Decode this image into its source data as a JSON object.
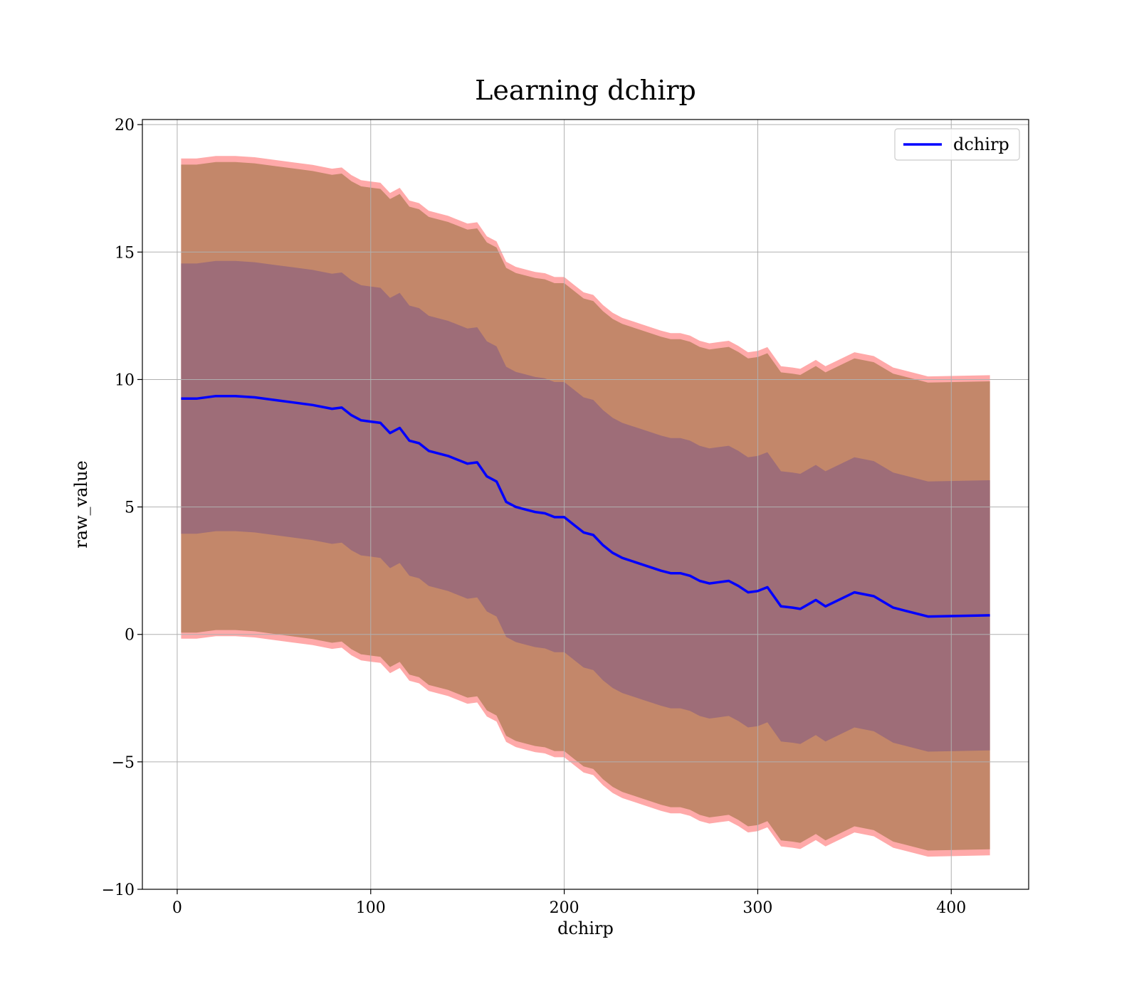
{
  "chart_data": {
    "type": "line",
    "title": "Learning dchirp",
    "xlabel": "dchirp",
    "ylabel": "raw_value",
    "xlim": [
      -18,
      440
    ],
    "ylim": [
      -10,
      20.2
    ],
    "xticks": [
      0,
      100,
      200,
      300,
      400
    ],
    "yticks": [
      -10,
      -5,
      0,
      5,
      10,
      15,
      20
    ],
    "xtick_labels": [
      "0",
      "100",
      "200",
      "300",
      "400"
    ],
    "ytick_labels": [
      "−10",
      "−5",
      "0",
      "5",
      "10",
      "15",
      "20"
    ],
    "grid": true,
    "legend_position": "top-right",
    "x": [
      2,
      10,
      20,
      30,
      40,
      50,
      60,
      70,
      80,
      85,
      90,
      95,
      100,
      105,
      110,
      115,
      120,
      125,
      130,
      140,
      150,
      155,
      160,
      165,
      170,
      175,
      180,
      185,
      190,
      195,
      200,
      205,
      210,
      215,
      220,
      225,
      230,
      240,
      250,
      255,
      260,
      265,
      270,
      275,
      280,
      285,
      290,
      295,
      300,
      305,
      312,
      318,
      322,
      330,
      335,
      350,
      360,
      370,
      388,
      420
    ],
    "series": [
      {
        "name": "dchirp",
        "color": "#0000ff",
        "values": [
          9.25,
          9.25,
          9.35,
          9.35,
          9.3,
          9.2,
          9.1,
          9.0,
          8.85,
          8.9,
          8.6,
          8.4,
          8.35,
          8.3,
          7.9,
          8.1,
          7.6,
          7.5,
          7.2,
          7.0,
          6.7,
          6.75,
          6.2,
          6.0,
          5.2,
          5.0,
          4.9,
          4.8,
          4.75,
          4.6,
          4.6,
          4.3,
          4.0,
          3.9,
          3.5,
          3.2,
          3.0,
          2.75,
          2.5,
          2.4,
          2.4,
          2.3,
          2.1,
          2.0,
          2.05,
          2.1,
          1.9,
          1.65,
          1.7,
          1.85,
          1.1,
          1.05,
          1.0,
          1.35,
          1.1,
          1.65,
          1.5,
          1.05,
          0.7,
          0.75
        ]
      }
    ],
    "bands": [
      {
        "type": "outer",
        "fill": "#c3876a",
        "edge": "#ff9a9a",
        "offset": 9.3
      },
      {
        "type": "inner",
        "fill": "#9e6d78",
        "offset": 5.3
      }
    ]
  }
}
